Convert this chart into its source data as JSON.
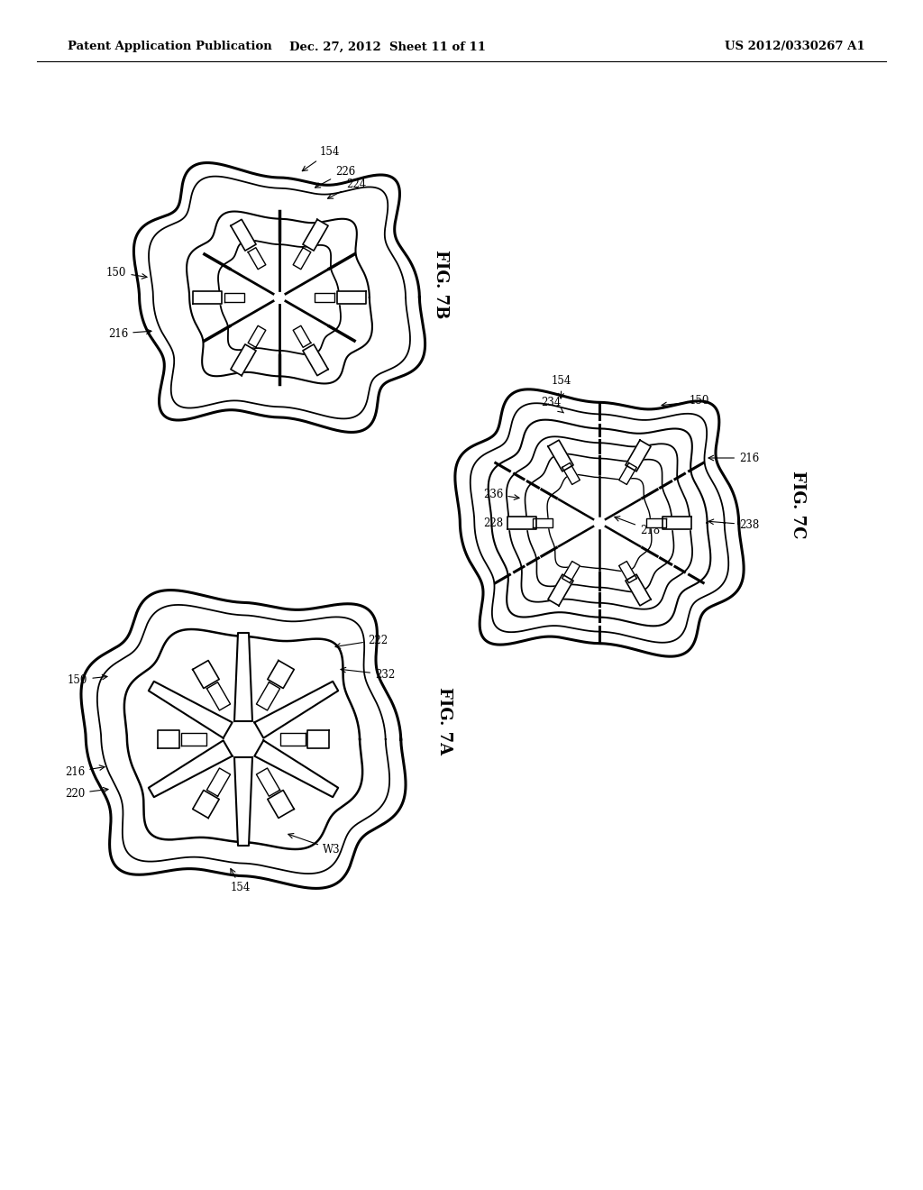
{
  "title_left": "Patent Application Publication",
  "title_mid": "Dec. 27, 2012  Sheet 11 of 11",
  "title_right": "US 2012/0330267 A1",
  "fig7b_label": "FIG. 7B",
  "fig7a_label": "FIG. 7A",
  "fig7c_label": "FIG. 7C",
  "bg_color": "#ffffff",
  "line_color": "#000000"
}
